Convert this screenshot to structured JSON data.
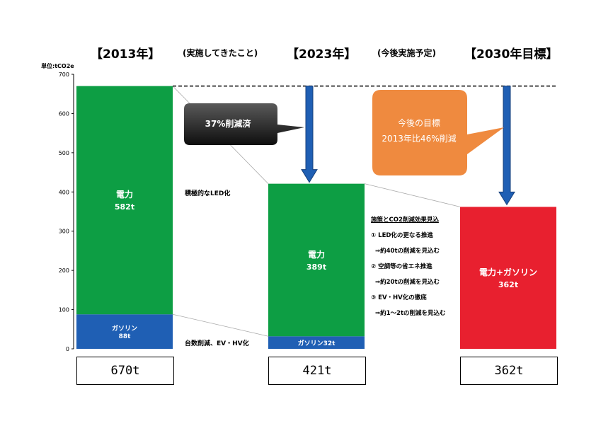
{
  "headers": {
    "y2013": "【2013年】",
    "done": "(実施してきたこと)",
    "y2023": "【2023年】",
    "plan": "(今後実施予定)",
    "y2030": "【2030年目標】"
  },
  "callouts": {
    "reduced": "37%削減済",
    "goal_line1": "今後の目標",
    "goal_line2": "2013年比46%削減"
  },
  "notes": {
    "led": "積極的なLED化",
    "cars": "台数削減、EV・HV化"
  },
  "plans": {
    "title": "施策とCO2削減効果見込",
    "items": [
      "① LED化の更なる推進",
      "⇒約40tの削減を見込む",
      "② 空調等の省エネ推進",
      "⇒約20tの削減を見込む",
      "③ EV・HV化の徹底",
      "⇒約1～2tの削減を見込む"
    ]
  },
  "chart_data": {
    "type": "bar",
    "stacked": true,
    "ylabel": "単位:tCO2e",
    "ylim": [
      0,
      700
    ],
    "yticks": [
      0,
      100,
      200,
      300,
      400,
      500,
      600,
      700
    ],
    "grid": false,
    "categories": [
      "2013",
      "2023",
      "2030"
    ],
    "segments": [
      [
        {
          "label": "ガソリン",
          "value_label": "88t",
          "value": 88,
          "color": "#1f5fb4"
        },
        {
          "label": "電力",
          "value_label": "582t",
          "value": 582,
          "color": "#0d9e44"
        }
      ],
      [
        {
          "label": "ガソリン32t",
          "value_label": "",
          "value": 32,
          "color": "#1f5fb4"
        },
        {
          "label": "電力",
          "value_label": "389t",
          "value": 389,
          "color": "#0d9e44"
        }
      ],
      [
        {
          "label": "電力+ガソリン",
          "value_label": "362t",
          "value": 362,
          "color": "#e8202f"
        }
      ]
    ],
    "totals": [
      "670t",
      "421t",
      "362t"
    ],
    "reference_line": 670
  }
}
